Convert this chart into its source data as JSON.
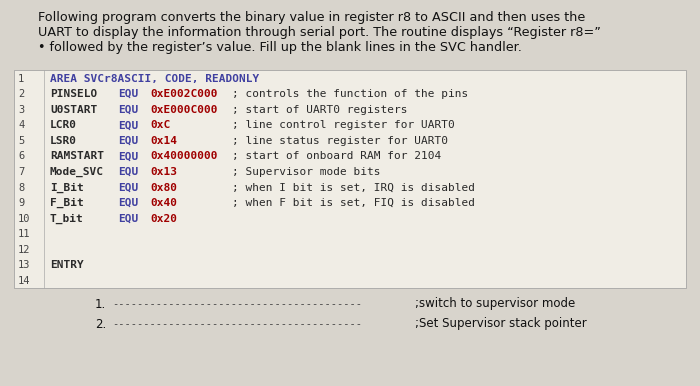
{
  "bg_color": "#d8d4cc",
  "header_text_lines": [
    "Following program converts the binary value in register r8 to ASCII and then uses the",
    "UART to display the information through serial port. The routine displays “Register r8=”",
    "• followed by the register’s value. Fill up the blank lines in the SVC handler."
  ],
  "code_bg": "#f0ede5",
  "lines": [
    {
      "num": "1",
      "label": "AREA SVCr8ASCII, CODE, READONLY",
      "equ": "",
      "val": "",
      "comment": "",
      "type": "header"
    },
    {
      "num": "2",
      "label": "PINSELO",
      "equ": "EQU",
      "val": "0xE002C000",
      "comment": "; controls the function of the pins",
      "type": "equ"
    },
    {
      "num": "3",
      "label": "U0START",
      "equ": "EQU",
      "val": "0xE000C000",
      "comment": "; start of UART0 registers",
      "type": "equ"
    },
    {
      "num": "4",
      "label": "LCR0",
      "equ": "EQU",
      "val": "0xC",
      "comment": "; line control register for UART0",
      "type": "equ"
    },
    {
      "num": "5",
      "label": "LSR0",
      "equ": "EQU",
      "val": "0x14",
      "comment": "; line status register for UART0",
      "type": "equ"
    },
    {
      "num": "6",
      "label": "RAMSTART",
      "equ": "EQU",
      "val": "0x40000000",
      "comment": "; start of onboard RAM for 2104",
      "type": "equ"
    },
    {
      "num": "7",
      "label": "Mode_SVC",
      "equ": "EQU",
      "val": "0x13",
      "comment": "; Supervisor mode bits",
      "type": "equ"
    },
    {
      "num": "8",
      "label": "I_Bit",
      "equ": "EQU",
      "val": "0x80",
      "comment": "; when I bit is set, IRQ is disabled",
      "type": "equ"
    },
    {
      "num": "9",
      "label": "F_Bit",
      "equ": "EQU",
      "val": "0x40",
      "comment": "; when F bit is set, FIQ is disabled",
      "type": "equ"
    },
    {
      "num": "10",
      "label": "T_bit",
      "equ": "EQU",
      "val": "0x20",
      "comment": "",
      "type": "equ"
    },
    {
      "num": "11",
      "label": "",
      "equ": "",
      "val": "",
      "comment": "",
      "type": "empty"
    },
    {
      "num": "12",
      "label": "",
      "equ": "",
      "val": "",
      "comment": "",
      "type": "empty"
    },
    {
      "num": "13",
      "label": "ENTRY",
      "equ": "",
      "val": "",
      "comment": "",
      "type": "label"
    },
    {
      "num": "14",
      "label": "",
      "equ": "",
      "val": "",
      "comment": "",
      "type": "empty"
    }
  ],
  "footer_items": [
    {
      "num": "1.",
      "dashes": "----------------------------------------",
      "text": ";switch to supervisor mode"
    },
    {
      "num": "2.",
      "dashes": "----------------------------------------",
      "text": ";Set Supervisor stack pointer"
    }
  ],
  "keyword_color": "#4040a0",
  "val_color": "#a00000",
  "comment_color": "#2a2a2a",
  "label_color": "#2a2a2a",
  "number_color": "#444444",
  "header_fs": 9.2,
  "code_fs": 8.0,
  "footer_fs": 8.5
}
